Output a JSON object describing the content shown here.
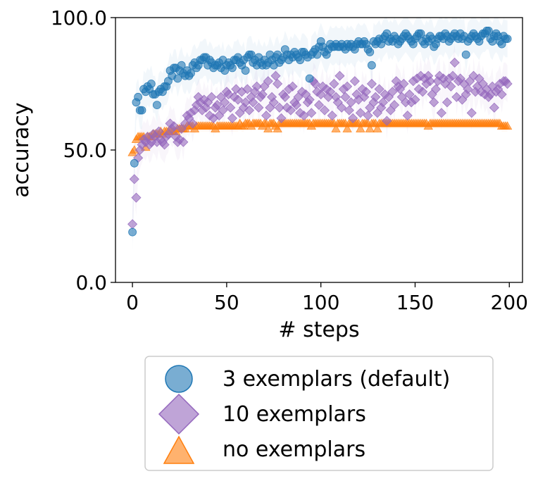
{
  "chart_data": {
    "type": "scatter",
    "title": "",
    "xlabel": "# steps",
    "ylabel": "accuracy",
    "xlim": [
      -9,
      207
    ],
    "ylim": [
      0,
      100
    ],
    "xticks": [
      "0",
      "50",
      "100",
      "150",
      "200"
    ],
    "yticks": [
      "0.0",
      "50.0",
      "100.0"
    ],
    "grid": false,
    "legend_position": "below",
    "series": [
      {
        "name": "3 exemplars (default)",
        "marker": "circle",
        "color": "#1f77b4",
        "x": [
          0,
          1,
          2,
          3,
          4,
          5,
          6,
          7,
          8,
          9,
          10,
          11,
          12,
          13,
          14,
          15,
          16,
          17,
          18,
          19,
          20,
          21,
          22,
          23,
          24,
          25,
          26,
          27,
          28,
          29,
          30,
          31,
          32,
          33,
          34,
          35,
          36,
          37,
          38,
          39,
          40,
          41,
          42,
          43,
          44,
          45,
          46,
          47,
          48,
          49,
          50,
          51,
          52,
          53,
          54,
          55,
          56,
          57,
          58,
          59,
          60,
          61,
          62,
          63,
          64,
          65,
          66,
          67,
          68,
          69,
          70,
          71,
          72,
          73,
          74,
          75,
          76,
          77,
          78,
          79,
          80,
          81,
          82,
          83,
          84,
          85,
          86,
          87,
          88,
          89,
          90,
          91,
          92,
          93,
          94,
          95,
          96,
          97,
          98,
          99,
          100,
          101,
          102,
          103,
          104,
          105,
          106,
          107,
          108,
          109,
          110,
          111,
          112,
          113,
          114,
          115,
          116,
          117,
          118,
          119,
          120,
          121,
          122,
          123,
          124,
          125,
          126,
          127,
          128,
          129,
          130,
          131,
          132,
          133,
          134,
          135,
          136,
          137,
          138,
          139,
          140,
          141,
          142,
          143,
          144,
          145,
          146,
          147,
          148,
          149,
          150,
          151,
          152,
          153,
          154,
          155,
          156,
          157,
          158,
          159,
          160,
          161,
          162,
          163,
          164,
          165,
          166,
          167,
          168,
          169,
          170,
          171,
          172,
          173,
          174,
          175,
          176,
          177,
          178,
          179,
          180,
          181,
          182,
          183,
          184,
          185,
          186,
          187,
          188,
          189,
          190,
          191,
          192,
          193,
          194,
          195,
          196,
          197,
          198,
          199
        ],
        "y": [
          19,
          45,
          68,
          70,
          65,
          65,
          73,
          72,
          74,
          73,
          75,
          71,
          71,
          67,
          72,
          73,
          72,
          74,
          74,
          76,
          80,
          78,
          81,
          81,
          77,
          80,
          82,
          79,
          78,
          80,
          78,
          79,
          82,
          83,
          81,
          82,
          84,
          84,
          85,
          85,
          82,
          84,
          83,
          81,
          82,
          82,
          83,
          81,
          84,
          80,
          82,
          83,
          82,
          81,
          84,
          84,
          85,
          83,
          82,
          84,
          80,
          85,
          86,
          86,
          83,
          84,
          82,
          85,
          83,
          82,
          84,
          82,
          83,
          86,
          84,
          82,
          85,
          86,
          83,
          84,
          85,
          88,
          86,
          84,
          86,
          85,
          87,
          86,
          85,
          84,
          87,
          87,
          86,
          85,
          77,
          86,
          87,
          88,
          86,
          89,
          91,
          89,
          87,
          86,
          88,
          90,
          89,
          89,
          90,
          89,
          89,
          90,
          89,
          88,
          90,
          89,
          90,
          89,
          88,
          90,
          91,
          90,
          90,
          91,
          90,
          88,
          87,
          82,
          91,
          90,
          91,
          92,
          90,
          92,
          93,
          94,
          91,
          92,
          91,
          93,
          92,
          90,
          91,
          92,
          93,
          94,
          93,
          92,
          91,
          90,
          92,
          93,
          94,
          94,
          91,
          90,
          92,
          91,
          93,
          92,
          89,
          90,
          92,
          93,
          93,
          92,
          94,
          93,
          91,
          92,
          93,
          94,
          93,
          92,
          94,
          92,
          93,
          86,
          91,
          92,
          93,
          94,
          93,
          92,
          91,
          93,
          94,
          94,
          95,
          95,
          92,
          91,
          93,
          94,
          93,
          91,
          90,
          93,
          92,
          92
        ]
      },
      {
        "name": "10 exemplars",
        "marker": "diamond",
        "color": "#9467bd",
        "x": [
          0,
          1,
          2,
          3,
          4,
          5,
          6,
          7,
          8,
          9,
          10,
          11,
          12,
          13,
          14,
          15,
          16,
          17,
          18,
          19,
          20,
          21,
          22,
          23,
          24,
          25,
          26,
          27,
          28,
          29,
          30,
          31,
          32,
          33,
          34,
          35,
          36,
          37,
          38,
          39,
          40,
          41,
          42,
          43,
          44,
          45,
          46,
          47,
          48,
          49,
          50,
          51,
          52,
          53,
          54,
          55,
          56,
          57,
          58,
          59,
          60,
          61,
          62,
          63,
          64,
          65,
          66,
          67,
          68,
          69,
          70,
          71,
          72,
          73,
          74,
          75,
          76,
          77,
          78,
          79,
          80,
          81,
          82,
          83,
          84,
          85,
          86,
          87,
          88,
          89,
          90,
          91,
          92,
          93,
          94,
          95,
          96,
          97,
          98,
          99,
          100,
          101,
          102,
          103,
          104,
          105,
          106,
          107,
          108,
          109,
          110,
          111,
          112,
          113,
          114,
          115,
          116,
          117,
          118,
          119,
          120,
          121,
          122,
          123,
          124,
          125,
          126,
          127,
          128,
          129,
          130,
          131,
          132,
          133,
          134,
          135,
          136,
          137,
          138,
          139,
          140,
          141,
          142,
          143,
          144,
          145,
          146,
          147,
          148,
          149,
          150,
          151,
          152,
          153,
          154,
          155,
          156,
          157,
          158,
          159,
          160,
          161,
          162,
          163,
          164,
          165,
          166,
          167,
          168,
          169,
          170,
          171,
          172,
          173,
          174,
          175,
          176,
          177,
          178,
          179,
          180,
          181,
          182,
          183,
          184,
          185,
          186,
          187,
          188,
          189,
          190,
          191,
          192,
          193,
          194,
          195,
          196,
          197,
          198,
          199
        ],
        "y": [
          22,
          39,
          32,
          47,
          50,
          52,
          54,
          53,
          55,
          52,
          53,
          56,
          55,
          53,
          57,
          54,
          53,
          52,
          55,
          56,
          60,
          58,
          59,
          55,
          53,
          54,
          58,
          53,
          60,
          63,
          62,
          64,
          60,
          65,
          67,
          70,
          68,
          65,
          69,
          66,
          68,
          63,
          70,
          62,
          66,
          67,
          63,
          70,
          65,
          68,
          72,
          71,
          66,
          62,
          70,
          73,
          69,
          64,
          72,
          66,
          68,
          73,
          65,
          70,
          68,
          72,
          74,
          66,
          70,
          71,
          74,
          63,
          76,
          66,
          70,
          68,
          78,
          75,
          66,
          62,
          71,
          70,
          66,
          73,
          65,
          74,
          68,
          67,
          70,
          64,
          72,
          63,
          71,
          68,
          69,
          64,
          76,
          75,
          72,
          67,
          71,
          74,
          65,
          73,
          70,
          72,
          63,
          75,
          70,
          68,
          78,
          66,
          73,
          70,
          74,
          65,
          68,
          62,
          76,
          71,
          69,
          64,
          73,
          70,
          72,
          63,
          66,
          75,
          68,
          70,
          64,
          73,
          66,
          68,
          71,
          61,
          70,
          65,
          72,
          67,
          76,
          74,
          73,
          70,
          75,
          68,
          63,
          71,
          68,
          76,
          69,
          77,
          73,
          78,
          72,
          77,
          75,
          78,
          76,
          71,
          68,
          73,
          76,
          78,
          64,
          77,
          75,
          68,
          77,
          74,
          78,
          83,
          70,
          76,
          77,
          69,
          75,
          71,
          73,
          76,
          64,
          78,
          72,
          74,
          77,
          72,
          75,
          71,
          73,
          70,
          71,
          74,
          66,
          72,
          73,
          75,
          71,
          76,
          76,
          75
        ]
      },
      {
        "name": "no exemplars",
        "marker": "triangle",
        "color": "#ff7f0e",
        "x": [
          0,
          1,
          2,
          3,
          4,
          5,
          6,
          7,
          8,
          9,
          10,
          11,
          12,
          13,
          14,
          15,
          16,
          17,
          18,
          19,
          20,
          21,
          22,
          23,
          24,
          25,
          26,
          27,
          28,
          29,
          30,
          31,
          32,
          33,
          34,
          35,
          36,
          37,
          38,
          39,
          40,
          41,
          42,
          43,
          44,
          45,
          46,
          47,
          48,
          49,
          50,
          51,
          52,
          53,
          54,
          55,
          56,
          57,
          58,
          59,
          60,
          61,
          62,
          63,
          64,
          65,
          66,
          67,
          68,
          69,
          70,
          71,
          72,
          73,
          74,
          75,
          76,
          77,
          78,
          79,
          80,
          81,
          82,
          83,
          84,
          85,
          86,
          87,
          88,
          89,
          90,
          91,
          92,
          93,
          94,
          95,
          96,
          97,
          98,
          99,
          100,
          101,
          102,
          103,
          104,
          105,
          106,
          107,
          108,
          109,
          110,
          111,
          112,
          113,
          114,
          115,
          116,
          117,
          118,
          119,
          120,
          121,
          122,
          123,
          124,
          125,
          126,
          127,
          128,
          129,
          130,
          131,
          132,
          133,
          134,
          135,
          136,
          137,
          138,
          139,
          140,
          141,
          142,
          143,
          144,
          145,
          146,
          147,
          148,
          149,
          150,
          151,
          152,
          153,
          154,
          155,
          156,
          157,
          158,
          159,
          160,
          161,
          162,
          163,
          164,
          165,
          166,
          167,
          168,
          169,
          170,
          171,
          172,
          173,
          174,
          175,
          176,
          177,
          178,
          179,
          180,
          181,
          182,
          183,
          184,
          185,
          186,
          187,
          188,
          189,
          190,
          191,
          192,
          193,
          194,
          195,
          196,
          197,
          198,
          199
        ],
        "y": [
          49,
          50,
          54,
          55,
          55,
          55,
          55,
          51,
          55,
          55,
          55,
          56,
          56,
          56,
          56,
          57,
          56,
          57,
          57,
          57,
          57,
          57,
          57,
          57,
          58,
          58,
          58,
          58,
          58,
          59,
          59,
          59,
          59,
          58,
          59,
          59,
          59,
          59,
          59,
          59,
          59,
          59,
          59,
          59,
          58,
          59,
          59,
          59,
          59,
          59,
          59,
          59,
          59,
          59,
          59,
          59,
          59,
          60,
          59,
          59,
          60,
          60,
          60,
          59,
          60,
          60,
          60,
          60,
          60,
          59,
          60,
          60,
          58,
          60,
          60,
          60,
          59,
          58,
          60,
          60,
          60,
          60,
          60,
          60,
          60,
          60,
          60,
          60,
          60,
          60,
          60,
          60,
          60,
          60,
          60,
          59,
          60,
          60,
          60,
          60,
          60,
          60,
          60,
          60,
          60,
          60,
          60,
          60,
          58,
          60,
          60,
          60,
          60,
          60,
          58,
          60,
          60,
          60,
          60,
          60,
          60,
          58,
          60,
          60,
          60,
          60,
          58,
          60,
          60,
          60,
          58,
          60,
          60,
          60,
          60,
          60,
          60,
          60,
          60,
          60,
          60,
          60,
          60,
          60,
          60,
          60,
          60,
          60,
          60,
          60,
          60,
          60,
          60,
          60,
          60,
          60,
          60,
          59,
          60,
          60,
          60,
          60,
          60,
          60,
          60,
          60,
          60,
          60,
          60,
          60,
          60,
          60,
          60,
          60,
          60,
          60,
          60,
          60,
          60,
          60,
          60,
          60,
          60,
          60,
          60,
          60,
          60,
          60,
          60,
          60,
          60,
          60,
          60,
          60,
          60,
          60,
          59,
          59,
          59,
          59
        ]
      }
    ]
  }
}
